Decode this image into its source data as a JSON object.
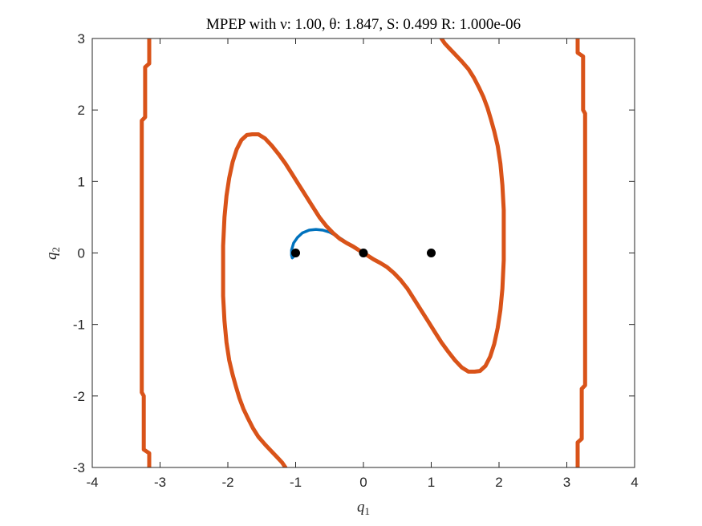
{
  "chart_data": {
    "type": "line",
    "title": "MPEP with ν: 1.00, θ: 1.847, S: 0.499 R: 1.000e-06",
    "xlabel": "q",
    "xlabel_sub": "1",
    "ylabel": "q",
    "ylabel_sub": "2",
    "xlim": [
      -4,
      4
    ],
    "ylim": [
      -3,
      3
    ],
    "xticks": [
      -4,
      -3,
      -2,
      -1,
      0,
      1,
      2,
      3,
      4
    ],
    "yticks": [
      -3,
      -2,
      -1,
      0,
      1,
      2,
      3
    ],
    "xtick_labels": [
      "-4",
      "-3",
      "-2",
      "-1",
      "0",
      "1",
      "2",
      "3",
      "4"
    ],
    "ytick_labels": [
      "-3",
      "-2",
      "-1",
      "0",
      "1",
      "2",
      "3"
    ],
    "grid": false,
    "colors": {
      "path": "#0072BD",
      "boundary": "#D95319",
      "points": "#000000"
    },
    "series": [
      {
        "role": "path",
        "color": "#0072BD",
        "x": [
          0,
          -0.1,
          -0.2,
          -0.3,
          -0.4,
          -0.5,
          -0.6,
          -0.7,
          -0.8,
          -0.9,
          -0.97,
          -1.03,
          -1.06,
          -1.06,
          -1.05,
          -1.03
        ],
        "y": [
          0,
          0.05,
          0.11,
          0.18,
          0.24,
          0.29,
          0.32,
          0.33,
          0.32,
          0.28,
          0.22,
          0.14,
          0.04,
          -0.03,
          -0.07,
          -0.05
        ]
      },
      {
        "role": "boundary-left",
        "color": "#D95319",
        "x": [
          -3.16,
          -3.16,
          -3.22,
          -3.22,
          -3.27,
          -3.27,
          -3.24,
          -3.24,
          -3.16,
          -3.16
        ],
        "y": [
          3.0,
          2.65,
          2.6,
          1.9,
          1.85,
          -1.95,
          -2.0,
          -2.75,
          -2.8,
          -3.0
        ]
      },
      {
        "role": "boundary-right",
        "color": "#D95319",
        "x": [
          3.16,
          3.16,
          3.22,
          3.22,
          3.27,
          3.27,
          3.24,
          3.24,
          3.16,
          3.16
        ],
        "y": [
          -3.0,
          -2.65,
          -2.6,
          -1.9,
          -1.85,
          1.95,
          2.0,
          2.75,
          2.8,
          3.0
        ]
      },
      {
        "role": "boundary-lower-left",
        "color": "#D95319",
        "x": [
          -1.15,
          -1.2,
          -1.27,
          -1.35,
          -1.45,
          -1.55,
          -1.63,
          -1.7,
          -1.77,
          -1.83,
          -1.88,
          -1.93,
          -1.98,
          -2.02,
          -2.05,
          -2.07,
          -2.07,
          -2.07,
          -2.05,
          -2.02,
          -1.98,
          -1.93,
          -1.87,
          -1.8,
          -1.72,
          -1.64,
          -1.55,
          -1.45,
          -1.35,
          -1.25,
          -1.15,
          -1.05,
          -0.95,
          -0.85,
          -0.75,
          -0.65,
          -0.55,
          -0.45,
          -0.35,
          -0.25,
          -0.15,
          -0.07,
          0.0
        ],
        "y": [
          -3.0,
          -2.93,
          -2.86,
          -2.78,
          -2.68,
          -2.57,
          -2.45,
          -2.32,
          -2.18,
          -2.03,
          -1.87,
          -1.7,
          -1.5,
          -1.25,
          -0.95,
          -0.6,
          -0.3,
          0.1,
          0.5,
          0.8,
          1.05,
          1.27,
          1.45,
          1.58,
          1.65,
          1.66,
          1.66,
          1.6,
          1.5,
          1.38,
          1.25,
          1.1,
          0.95,
          0.8,
          0.65,
          0.5,
          0.38,
          0.28,
          0.2,
          0.14,
          0.09,
          0.04,
          0.0
        ]
      },
      {
        "role": "boundary-upper-right",
        "color": "#D95319",
        "x": [
          1.15,
          1.2,
          1.27,
          1.35,
          1.45,
          1.55,
          1.63,
          1.7,
          1.77,
          1.83,
          1.88,
          1.93,
          1.98,
          2.02,
          2.05,
          2.07,
          2.07,
          2.07,
          2.05,
          2.02,
          1.98,
          1.93,
          1.87,
          1.8,
          1.72,
          1.64,
          1.55,
          1.45,
          1.35,
          1.25,
          1.15,
          1.05,
          0.95,
          0.85,
          0.75,
          0.65,
          0.55,
          0.45,
          0.35,
          0.25,
          0.15,
          0.07,
          0.0
        ],
        "y": [
          3.0,
          2.93,
          2.86,
          2.78,
          2.68,
          2.57,
          2.45,
          2.32,
          2.18,
          2.03,
          1.87,
          1.7,
          1.5,
          1.25,
          0.95,
          0.6,
          0.3,
          -0.1,
          -0.5,
          -0.8,
          -1.05,
          -1.27,
          -1.45,
          -1.58,
          -1.65,
          -1.66,
          -1.66,
          -1.6,
          -1.5,
          -1.38,
          -1.25,
          -1.1,
          -0.95,
          -0.8,
          -0.65,
          -0.5,
          -0.38,
          -0.28,
          -0.2,
          -0.14,
          -0.09,
          -0.04,
          0.0
        ]
      }
    ],
    "points": {
      "x": [
        -1,
        0,
        1
      ],
      "y": [
        0,
        0,
        0
      ],
      "color": "#000000"
    }
  }
}
